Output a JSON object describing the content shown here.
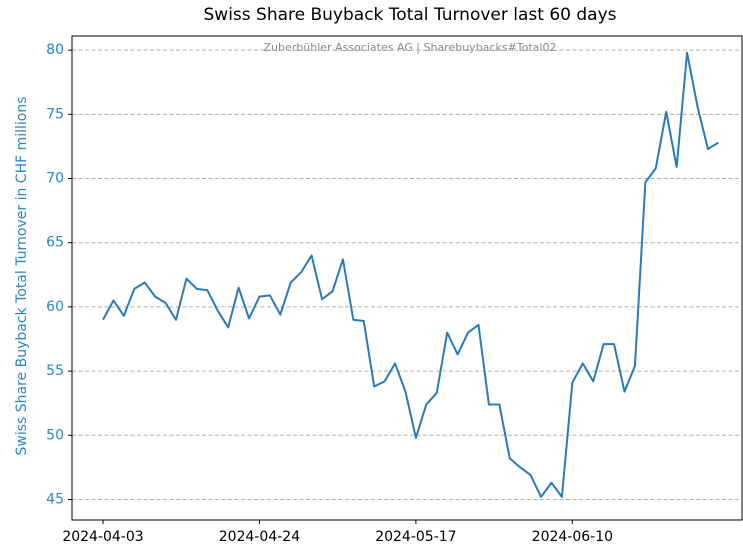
{
  "chart_data": {
    "type": "line",
    "title": "Swiss Share Buyback Total Turnover last 60 days",
    "annotation": "Zuberbühler Associates AG | Sharebuybacks#Total02",
    "y_label": "Swiss Share Buyback Total Turnover in CHF millions",
    "categories": [
      "2024-04-03",
      null,
      null,
      null,
      null,
      null,
      null,
      null,
      null,
      null,
      null,
      null,
      null,
      null,
      null,
      "2024-04-24",
      null,
      null,
      null,
      null,
      null,
      null,
      null,
      null,
      null,
      null,
      null,
      null,
      null,
      null,
      "2024-05-17",
      null,
      null,
      null,
      null,
      null,
      null,
      null,
      null,
      null,
      null,
      null,
      null,
      null,
      null,
      "2024-06-10",
      null,
      null,
      null,
      null,
      null,
      null,
      null,
      null,
      null,
      null,
      null,
      null,
      null,
      null
    ],
    "values": [
      59.0,
      60.5,
      59.3,
      61.4,
      61.9,
      60.8,
      60.3,
      59.0,
      62.2,
      61.4,
      61.3,
      59.7,
      58.4,
      61.5,
      59.1,
      60.8,
      60.9,
      59.4,
      61.9,
      62.7,
      64.0,
      60.6,
      61.2,
      63.7,
      59.0,
      58.9,
      53.8,
      54.2,
      55.6,
      53.4,
      49.8,
      52.4,
      53.3,
      58.0,
      56.3,
      58.0,
      58.6,
      52.4,
      52.4,
      48.2,
      47.5,
      46.9,
      45.2,
      46.3,
      45.2,
      54.1,
      55.6,
      54.2,
      57.1,
      57.1,
      53.4,
      55.4,
      69.7,
      70.8,
      75.2,
      70.9,
      79.8,
      75.6,
      72.3,
      72.8
    ],
    "color": "#2a7ab9",
    "ylim": [
      43.4,
      81.1
    ],
    "yticks": [
      45,
      50,
      55,
      60,
      65,
      70,
      75,
      80
    ],
    "grid": true
  }
}
